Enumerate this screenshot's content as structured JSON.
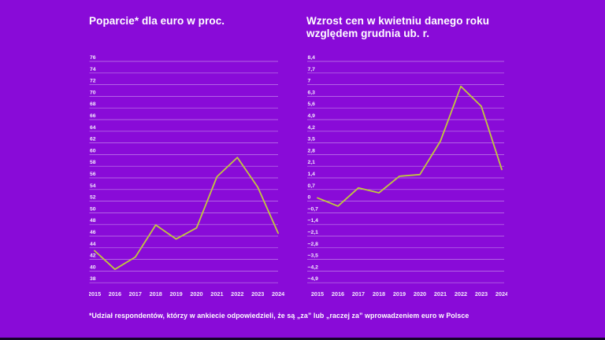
{
  "page": {
    "background_color": "#890BD8",
    "text_color": "#FFFFFF",
    "footnote": "*Udział respondentów, którzy w ankiecie odpowiedzieli, że są „za” lub „raczej za” wprowadzeniem euro w Polsce"
  },
  "chart_data": [
    {
      "type": "line",
      "title": "Poparcie* dla euro w proc.",
      "categories": [
        "2015",
        "2016",
        "2017",
        "2018",
        "2019",
        "2020",
        "2021",
        "2022",
        "2023",
        "2024"
      ],
      "values": [
        43.5,
        40.3,
        42.4,
        47.9,
        45.5,
        47.4,
        56.2,
        59.5,
        54.4,
        46.5
      ],
      "ylim": [
        38,
        76
      ],
      "ytick_step": 2,
      "y_tick_labels": [
        "76",
        "74",
        "72",
        "70",
        "68",
        "66",
        "64",
        "62",
        "60",
        "58",
        "56",
        "54",
        "52",
        "50",
        "48",
        "46",
        "44",
        "42",
        "40",
        "38"
      ],
      "xlabel": "",
      "ylabel": "",
      "grid": true,
      "legend_position": "none",
      "line_color": "#C1C83E"
    },
    {
      "type": "line",
      "title": "Wzrost cen w kwietniu danego roku względem grudnia ub. r.",
      "categories": [
        "2015",
        "2016",
        "2017",
        "2018",
        "2019",
        "2020",
        "2021",
        "2022",
        "2023",
        "2024"
      ],
      "values": [
        0.2,
        -0.3,
        0.8,
        0.5,
        1.5,
        1.6,
        3.6,
        6.9,
        5.7,
        1.9
      ],
      "ylim": [
        -4.9,
        8.4
      ],
      "ytick_step": 0.7,
      "y_tick_labels": [
        "8,4",
        "7,7",
        "7",
        "6,3",
        "5,6",
        "4,9",
        "4,2",
        "3,5",
        "2,8",
        "2,1",
        "1,4",
        "0,7",
        "0",
        "−0,7",
        "−1,4",
        "−2,1",
        "−2,8",
        "−3,5",
        "−4,2",
        "−4,9"
      ],
      "xlabel": "",
      "ylabel": "",
      "grid": true,
      "legend_position": "none",
      "line_color": "#C1C83E"
    }
  ]
}
